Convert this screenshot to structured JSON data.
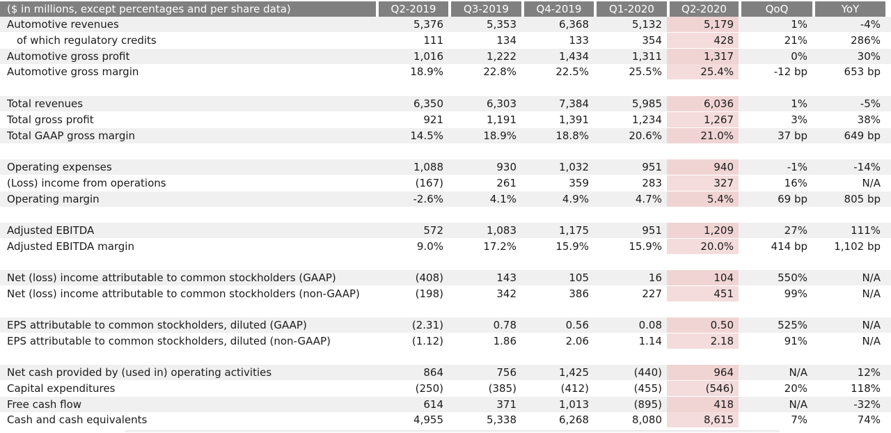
{
  "table": {
    "header": [
      "($ in millions, except percentages and per share data)",
      "Q2-2019",
      "Q3-2019",
      "Q4-2019",
      "Q1-2020",
      "Q2-2020",
      "QoQ",
      "YoY"
    ],
    "groups": [
      {
        "rows": [
          {
            "label": "Automotive revenues",
            "indent": false,
            "values": [
              "5,376",
              "5,353",
              "6,368",
              "5,132",
              "5,179",
              "1%",
              "-4%"
            ]
          },
          {
            "label": "of which regulatory credits",
            "indent": true,
            "values": [
              "111",
              "134",
              "133",
              "354",
              "428",
              "21%",
              "286%"
            ]
          },
          {
            "label": "Automotive gross profit",
            "indent": false,
            "values": [
              "1,016",
              "1,222",
              "1,434",
              "1,311",
              "1,317",
              "0%",
              "30%"
            ]
          },
          {
            "label": "Automotive gross margin",
            "indent": false,
            "values": [
              "18.9%",
              "22.8%",
              "22.5%",
              "25.5%",
              "25.4%",
              "-12 bp",
              "653 bp"
            ]
          }
        ]
      },
      {
        "rows": [
          {
            "label": "Total revenues",
            "indent": false,
            "values": [
              "6,350",
              "6,303",
              "7,384",
              "5,985",
              "6,036",
              "1%",
              "-5%"
            ]
          },
          {
            "label": "Total gross profit",
            "indent": false,
            "values": [
              "921",
              "1,191",
              "1,391",
              "1,234",
              "1,267",
              "3%",
              "38%"
            ]
          },
          {
            "label": "Total GAAP gross margin",
            "indent": false,
            "values": [
              "14.5%",
              "18.9%",
              "18.8%",
              "20.6%",
              "21.0%",
              "37 bp",
              "649 bp"
            ]
          }
        ]
      },
      {
        "rows": [
          {
            "label": "Operating expenses",
            "indent": false,
            "values": [
              "1,088",
              "930",
              "1,032",
              "951",
              "940",
              "-1%",
              "-14%"
            ]
          },
          {
            "label": "(Loss) income from operations",
            "indent": false,
            "values": [
              "(167)",
              "261",
              "359",
              "283",
              "327",
              "16%",
              "N/A"
            ]
          },
          {
            "label": "Operating margin",
            "indent": false,
            "values": [
              "-2.6%",
              "4.1%",
              "4.9%",
              "4.7%",
              "5.4%",
              "69 bp",
              "805 bp"
            ]
          }
        ]
      },
      {
        "rows": [
          {
            "label": "Adjusted EBITDA",
            "indent": false,
            "values": [
              "572",
              "1,083",
              "1,175",
              "951",
              "1,209",
              "27%",
              "111%"
            ]
          },
          {
            "label": "Adjusted EBITDA margin",
            "indent": false,
            "values": [
              "9.0%",
              "17.2%",
              "15.9%",
              "15.9%",
              "20.0%",
              "414 bp",
              "1,102 bp"
            ]
          }
        ]
      },
      {
        "rows": [
          {
            "label": "Net (loss) income attributable to common stockholders (GAAP)",
            "indent": false,
            "values": [
              "(408)",
              "143",
              "105",
              "16",
              "104",
              "550%",
              "N/A"
            ]
          },
          {
            "label": "Net (loss) income attributable to common stockholders (non-GAAP)",
            "indent": false,
            "values": [
              "(198)",
              "342",
              "386",
              "227",
              "451",
              "99%",
              "N/A"
            ]
          }
        ]
      },
      {
        "rows": [
          {
            "label": "EPS attributable to common stockholders, diluted (GAAP)",
            "indent": false,
            "values": [
              "(2.31)",
              "0.78",
              "0.56",
              "0.08",
              "0.50",
              "525%",
              "N/A"
            ]
          },
          {
            "label": "EPS attributable to common stockholders, diluted (non-GAAP)",
            "indent": false,
            "values": [
              "(1.12)",
              "1.86",
              "2.06",
              "1.14",
              "2.18",
              "91%",
              "N/A"
            ]
          }
        ]
      },
      {
        "rows": [
          {
            "label": "Net cash provided by (used in) operating activities",
            "indent": false,
            "values": [
              "864",
              "756",
              "1,425",
              "(440)",
              "964",
              "N/A",
              "12%"
            ]
          },
          {
            "label": "Capital expenditures",
            "indent": false,
            "values": [
              "(250)",
              "(385)",
              "(412)",
              "(455)",
              "(546)",
              "20%",
              "118%"
            ]
          },
          {
            "label": "Free cash flow",
            "indent": false,
            "values": [
              "614",
              "371",
              "1,013",
              "(895)",
              "418",
              "N/A",
              "-32%"
            ]
          },
          {
            "label": "Cash and cash equivalents",
            "indent": false,
            "values": [
              "4,955",
              "5,338",
              "6,268",
              "8,080",
              "8,615",
              "7%",
              "74%"
            ]
          }
        ]
      }
    ],
    "highlight_column": "Q2-2020",
    "colors": {
      "header_bg": "#808080",
      "zebra": "#f0f0f0",
      "highlight": "#f4dcdc"
    }
  }
}
